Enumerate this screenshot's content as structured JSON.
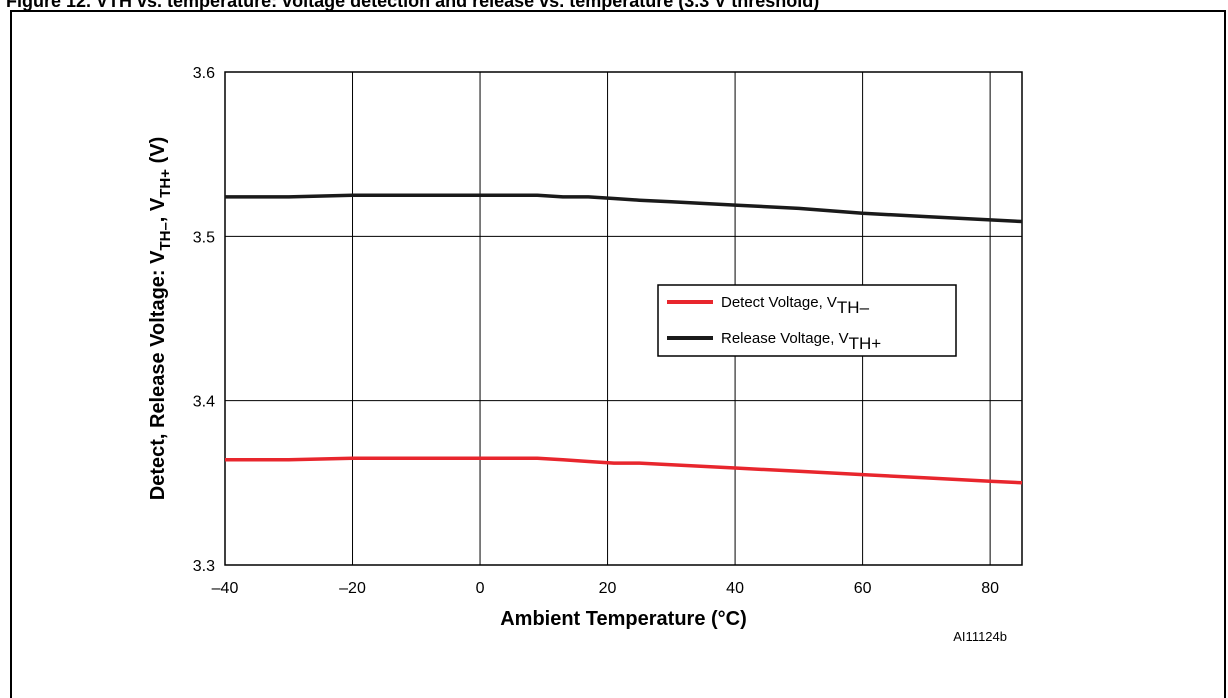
{
  "caption": "Figure 12. VTH vs. temperature: voltage detection and release vs. temperature (3.3 V threshold)",
  "figure_id": "AI11124b",
  "chart_data": {
    "type": "line",
    "xlabel": "Ambient Temperature (°C)",
    "ylabel": {
      "base": "Detect, Release Voltage: V",
      "sub1": "TH–",
      "mid": ", V",
      "sub2": "TH+",
      "tail": " (V)"
    },
    "xlim": [
      -40,
      85
    ],
    "ylim": [
      3.3,
      3.6
    ],
    "x_ticks": [
      -40,
      -20,
      0,
      20,
      40,
      60,
      80
    ],
    "x_tick_labels": [
      "–40",
      "–20",
      "0",
      "20",
      "40",
      "60",
      "80"
    ],
    "y_ticks": [
      3.3,
      3.4,
      3.5,
      3.6
    ],
    "y_tick_labels": [
      "3.3",
      "3.4",
      "3.5",
      "3.6"
    ],
    "grid": true,
    "legend_position": "center-right",
    "series": [
      {
        "name": "Detect Voltage, V",
        "name_sub": "TH–",
        "color": "#e8262d",
        "x": [
          -40,
          -30,
          -20,
          0,
          9,
          13,
          17,
          21,
          25,
          30,
          40,
          50,
          60,
          70,
          80,
          85
        ],
        "y": [
          3.364,
          3.364,
          3.365,
          3.365,
          3.365,
          3.364,
          3.363,
          3.362,
          3.362,
          3.361,
          3.359,
          3.357,
          3.355,
          3.353,
          3.351,
          3.35
        ]
      },
      {
        "name": "Release Voltage, V",
        "name_sub": "TH+",
        "color": "#1a1a1a",
        "x": [
          -40,
          -30,
          -20,
          0,
          9,
          13,
          17,
          21,
          25,
          30,
          40,
          50,
          60,
          70,
          80,
          85
        ],
        "y": [
          3.524,
          3.524,
          3.525,
          3.525,
          3.525,
          3.524,
          3.524,
          3.523,
          3.522,
          3.521,
          3.519,
          3.517,
          3.514,
          3.512,
          3.51,
          3.509
        ]
      }
    ]
  }
}
